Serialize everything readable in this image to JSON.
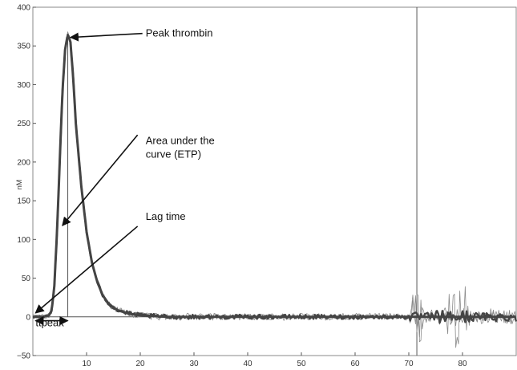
{
  "chart_data": {
    "type": "line",
    "title": "",
    "xlabel": "",
    "ylabel": "nM",
    "xlim": [
      0,
      90
    ],
    "ylim": [
      -50,
      400
    ],
    "x_ticks": [
      10,
      20,
      30,
      40,
      50,
      60,
      70,
      80
    ],
    "y_ticks": [
      -50,
      0,
      50,
      100,
      150,
      200,
      250,
      300,
      350,
      400
    ],
    "x_tick_labels": [
      "10",
      "20",
      "30",
      "40",
      "50",
      "60",
      "70",
      "80"
    ],
    "y_tick_labels": [
      "−50",
      "0",
      "50",
      "100",
      "150",
      "200",
      "250",
      "300",
      "350",
      "400"
    ],
    "grid": false,
    "colors": {
      "curve_main": "#444444",
      "curve_light": "#8a8a8a",
      "axis": "#555555",
      "frame": "#888888"
    },
    "series": [
      {
        "x": [
          0,
          2,
          3,
          3.5,
          4,
          4.5,
          5,
          5.5,
          6,
          6.5,
          7,
          7.5,
          8,
          9,
          10,
          11,
          12,
          13,
          14,
          15,
          16,
          18,
          20,
          25,
          30,
          40,
          50,
          60,
          70,
          80,
          90
        ],
        "values": [
          0,
          0,
          2,
          8,
          40,
          110,
          200,
          290,
          345,
          365,
          355,
          310,
          250,
          170,
          110,
          70,
          45,
          28,
          18,
          12,
          8,
          4,
          2,
          0,
          0,
          0,
          0,
          0,
          0,
          0,
          0
        ]
      }
    ],
    "vertical_lines": [
      {
        "x": 6.5,
        "y_from": 0,
        "y_to": 365
      },
      {
        "x": 71.5,
        "y_from": -50,
        "y_to": 400
      }
    ],
    "annotations": [
      {
        "text": "Peak thrombin",
        "x": 21,
        "y": 362,
        "arrow_to": [
          7,
          361
        ]
      },
      {
        "text": "Area under the\ncurve (ETP)",
        "x": 21,
        "y": 223,
        "arrow_from": [
          19.5,
          235
        ],
        "arrow_to": [
          5.5,
          118
        ]
      },
      {
        "text": "Lag time",
        "x": 21,
        "y": 125,
        "arrow_from": [
          19.5,
          117
        ],
        "arrow_to": [
          0.5,
          5
        ]
      },
      {
        "text": "ttpeak",
        "x": 0.5,
        "y": -12,
        "double_arrow_from": [
          0.5,
          -5
        ],
        "double_arrow_to": [
          6.5,
          -5
        ]
      }
    ]
  }
}
